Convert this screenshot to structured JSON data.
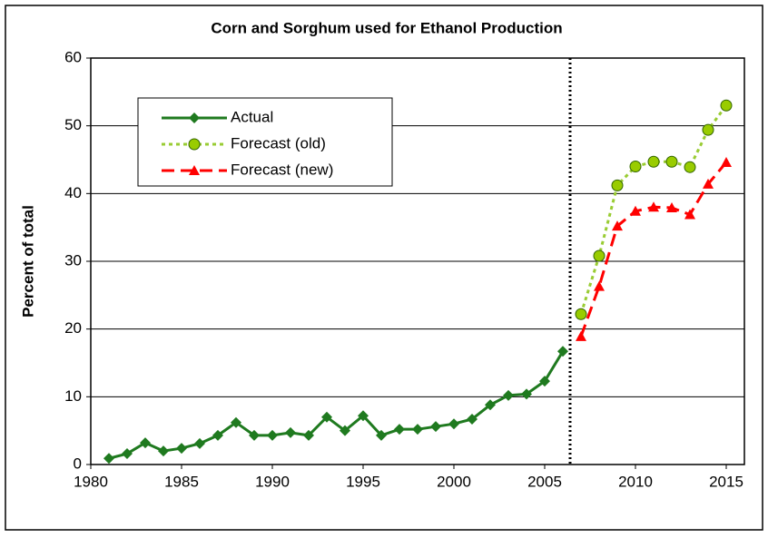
{
  "chart_data": {
    "type": "line",
    "title": "Corn and Sorghum used for Ethanol Production",
    "y_label": "Percent of total",
    "xlim": [
      1980,
      2016
    ],
    "xticks": [
      1980,
      1985,
      1990,
      1995,
      2000,
      2005,
      2010,
      2015
    ],
    "ylim": [
      0,
      60
    ],
    "yticks": [
      0,
      10,
      20,
      30,
      40,
      50,
      60
    ],
    "grid": true,
    "legend": "upper left",
    "vline": 2006.4,
    "series": [
      {
        "name": "Actual",
        "color": "#1f7a1f",
        "line_style": "solid",
        "marker": "diamond",
        "x": [
          1981,
          1982,
          1983,
          1984,
          1985,
          1986,
          1987,
          1988,
          1989,
          1990,
          1991,
          1992,
          1993,
          1994,
          1995,
          1996,
          1997,
          1998,
          1999,
          2000,
          2001,
          2002,
          2003,
          2004,
          2005,
          2006
        ],
        "values": [
          0.9,
          1.6,
          3.2,
          2.0,
          2.4,
          3.1,
          4.3,
          6.2,
          4.3,
          4.3,
          4.7,
          4.3,
          7.0,
          5.0,
          7.2,
          4.3,
          5.2,
          5.2,
          5.6,
          6.0,
          6.7,
          8.8,
          10.2,
          10.4,
          12.3,
          16.7
        ]
      },
      {
        "name": "Forecast (old)",
        "color": "#99cc33",
        "line_style": "dotted",
        "marker": "circle",
        "x": [
          2007,
          2008,
          2009,
          2010,
          2011,
          2012,
          2013,
          2014,
          2015
        ],
        "values": [
          22.2,
          30.8,
          41.2,
          44.0,
          44.7,
          44.7,
          43.9,
          49.4,
          53.0
        ]
      },
      {
        "name": "Forecast (new)",
        "color": "#ff0000",
        "line_style": "dashed",
        "marker": "triangle",
        "x": [
          2007,
          2008,
          2009,
          2010,
          2011,
          2012,
          2013,
          2014,
          2015
        ],
        "values": [
          18.9,
          26.3,
          35.2,
          37.4,
          38.0,
          37.9,
          36.9,
          41.4,
          44.6
        ]
      }
    ]
  }
}
